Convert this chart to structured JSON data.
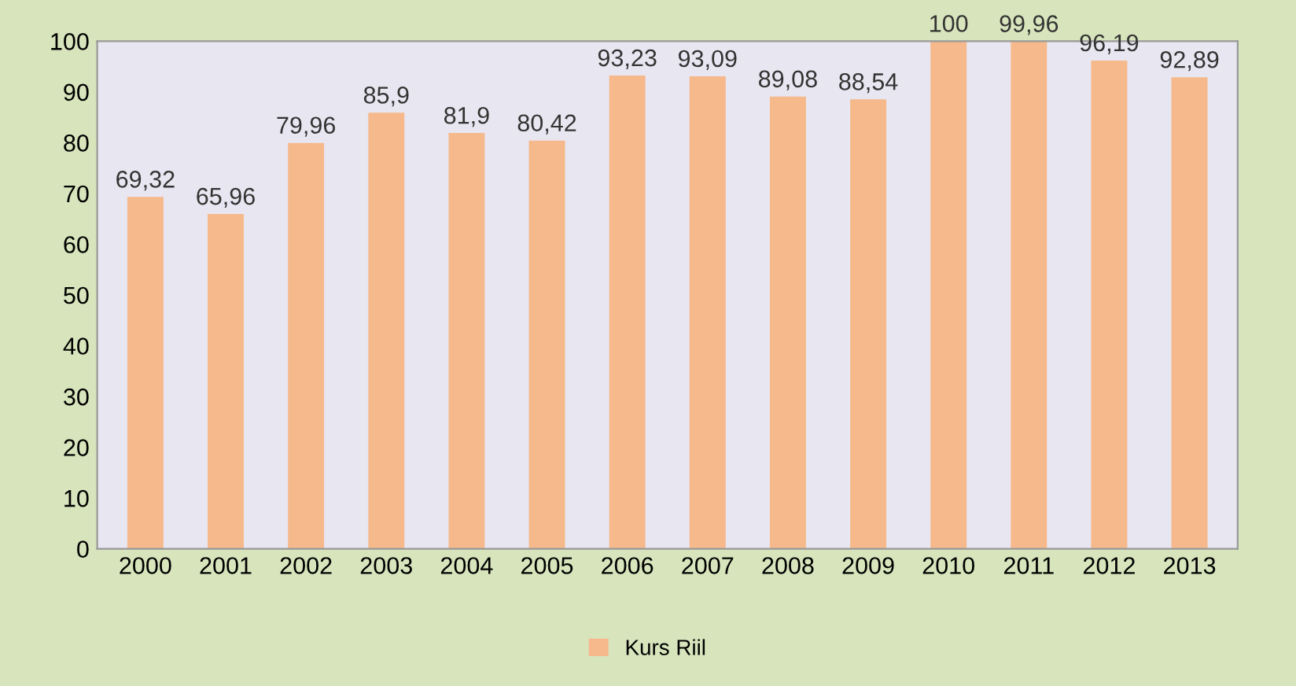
{
  "chart_data": {
    "type": "bar",
    "categories": [
      "2000",
      "2001",
      "2002",
      "2003",
      "2004",
      "2005",
      "2006",
      "2007",
      "2008",
      "2009",
      "2010",
      "2011",
      "2012",
      "2013"
    ],
    "series": [
      {
        "name": "Kurs Riil",
        "color": "#f6b98c",
        "values": [
          69.32,
          65.96,
          79.96,
          85.9,
          81.9,
          80.42,
          93.23,
          93.09,
          89.08,
          88.54,
          100,
          99.96,
          96.19,
          92.89
        ],
        "value_labels": [
          "69,32",
          "65,96",
          "79,96",
          "85,9",
          "81,9",
          "80,42",
          "93,23",
          "93,09",
          "89,08",
          "88,54",
          "100",
          "99,96",
          "96,19",
          "92,89"
        ]
      }
    ],
    "ylim": [
      0,
      100
    ],
    "yticks": [
      0,
      10,
      20,
      30,
      40,
      50,
      60,
      70,
      80,
      90,
      100
    ],
    "grid": false,
    "legend": "bottom"
  }
}
